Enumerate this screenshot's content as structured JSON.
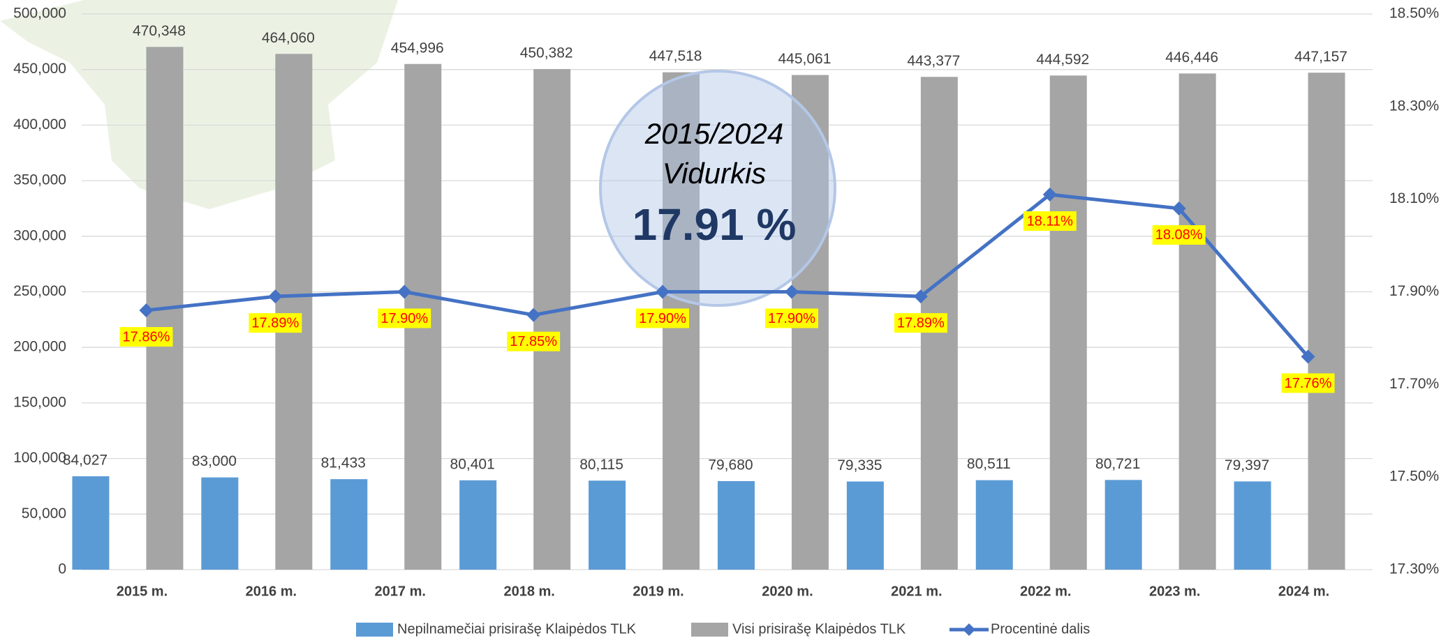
{
  "chart_data": {
    "type": "bar_line",
    "categories": [
      "2015 m.",
      "2016 m.",
      "2017 m.",
      "2018 m.",
      "2019 m.",
      "2020 m.",
      "2021 m.",
      "2022 m.",
      "2023 m.",
      "2024 m."
    ],
    "series": [
      {
        "name": "Nepilnamečiai prisirašę Klaipėdos TLK",
        "color": "#5b9bd5",
        "type": "bar",
        "values": [
          84027,
          83000,
          81433,
          80401,
          80115,
          79680,
          79335,
          80511,
          80721,
          79397
        ],
        "value_labels": [
          "84,027",
          "83,000",
          "81,433",
          "80,401",
          "80,115",
          "79,680",
          "79,335",
          "80,511",
          "80,721",
          "79,397"
        ]
      },
      {
        "name": "Visi prisirašę Klaipėdos TLK",
        "color": "#a5a5a5",
        "type": "bar",
        "values": [
          470348,
          464060,
          454996,
          450382,
          447518,
          445061,
          443377,
          444592,
          446446,
          447157
        ],
        "value_labels": [
          "470,348",
          "464,060",
          "454,996",
          "450,382",
          "447,518",
          "445,061",
          "443,377",
          "444,592",
          "446,446",
          "447,157"
        ]
      },
      {
        "name": "Procentinė dalis",
        "color": "#4472c4",
        "type": "line",
        "axis": "y2",
        "values": [
          17.86,
          17.89,
          17.9,
          17.85,
          17.9,
          17.9,
          17.89,
          18.11,
          18.08,
          17.76
        ],
        "value_labels": [
          "17.86%",
          "17.89%",
          "17.90%",
          "17.85%",
          "17.90%",
          "17.90%",
          "17.89%",
          "18.11%",
          "18.08%",
          "17.76%"
        ]
      }
    ],
    "ylim": [
      0,
      500000
    ],
    "yticks": [
      0,
      {
        "value": 50000,
        "label": "50,000"
      },
      {
        "value": 100000,
        "label": "100,000"
      },
      {
        "value": 150000,
        "label": "150,000"
      },
      {
        "value": 200000,
        "label": "200,000"
      },
      {
        "value": 250000,
        "label": "250,000"
      },
      {
        "value": 300000,
        "label": "300,000"
      },
      {
        "value": 350000,
        "label": "350,000"
      },
      {
        "value": 400000,
        "label": "400,000"
      },
      {
        "value": 450000,
        "label": "450,000"
      },
      {
        "value": 500000,
        "label": "500,000"
      }
    ],
    "y2lim": [
      17.3,
      18.5
    ],
    "y2ticks": [
      {
        "value": 17.3,
        "label": "17.30%"
      },
      {
        "value": 17.5,
        "label": "17.50%"
      },
      {
        "value": 17.7,
        "label": "17.70%"
      },
      {
        "value": 17.9,
        "label": "17.90%"
      },
      {
        "value": 18.1,
        "label": "18.10%"
      },
      {
        "value": 18.3,
        "label": "18.30%"
      },
      {
        "value": 18.5,
        "label": "18.50%"
      }
    ],
    "grid": true,
    "legend": "bottom",
    "annotation": [
      "2015/2024",
      "Vidurkis",
      "17.91 %"
    ]
  }
}
